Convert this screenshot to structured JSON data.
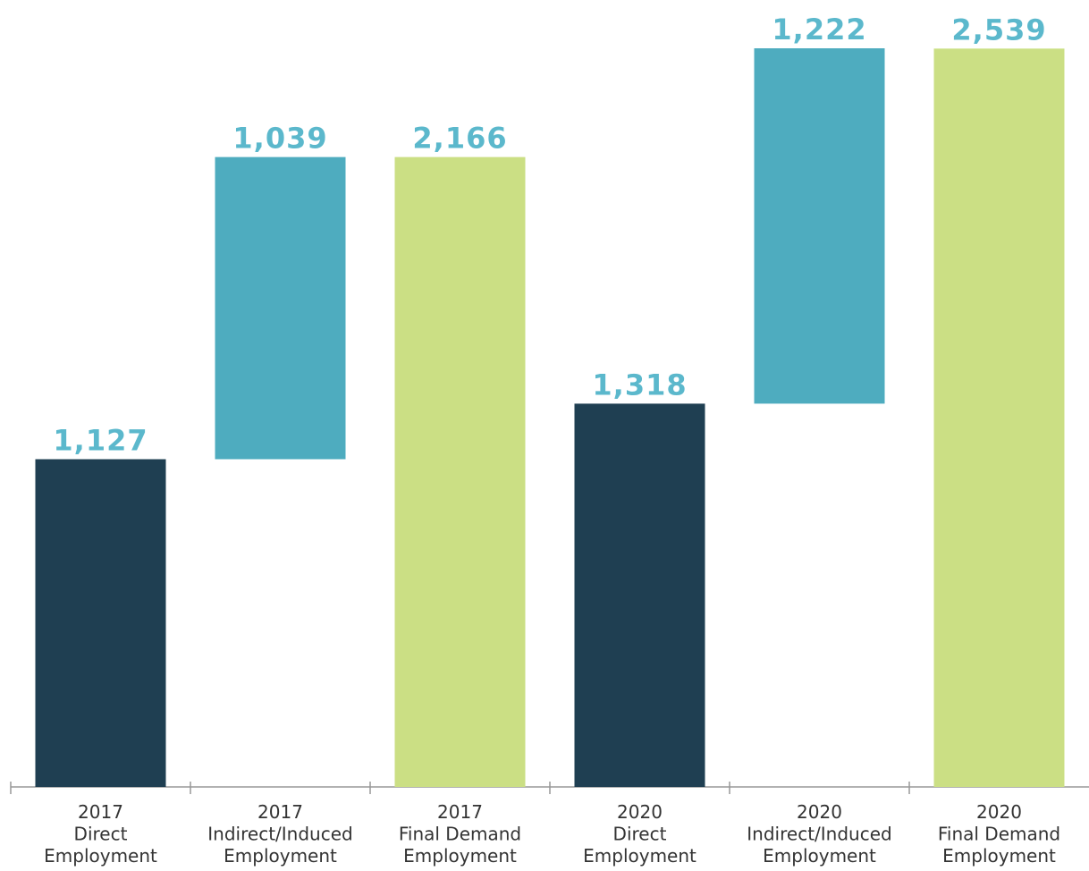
{
  "chart_data": {
    "type": "waterfall",
    "categories": [
      [
        "2017",
        "Direct",
        "Employment"
      ],
      [
        "2017",
        "Indirect/Induced",
        "Employment"
      ],
      [
        "2017",
        "Final Demand",
        "Employment"
      ],
      [
        "2020",
        "Direct",
        "Employment"
      ],
      [
        "2020",
        "Indirect/Induced",
        "Employment"
      ],
      [
        "2020",
        "Final Demand",
        "Employment"
      ]
    ],
    "values": [
      1127,
      1039,
      2166,
      1318,
      1222,
      2539
    ],
    "value_labels": [
      "1,127",
      "1,039",
      "2,166",
      "1,318",
      "1,222",
      "2,539"
    ],
    "measure": [
      "absolute",
      "relative",
      "total",
      "absolute",
      "relative",
      "total"
    ],
    "colors": [
      "#1f3f52",
      "#4eacbf",
      "#cbdf84",
      "#1f3f52",
      "#4eacbf",
      "#cbdf84"
    ]
  }
}
